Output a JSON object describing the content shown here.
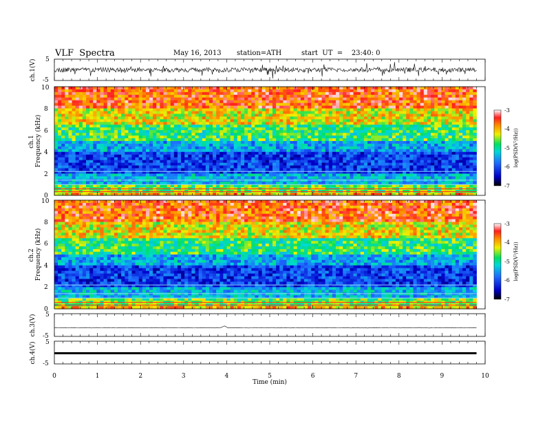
{
  "header": {
    "title": "VLF  Spectra",
    "date": "May 16, 2013",
    "station": "station=ATH",
    "start": "start  UT  =    23:40: 0"
  },
  "chart_data": [
    {
      "type": "line",
      "ylabel": "ch.1(V)",
      "ylim": [
        -5,
        5
      ],
      "yticks": [
        "5",
        "-5"
      ],
      "trace": "broadband noisy signal around 0 V"
    },
    {
      "type": "heatmap",
      "ylabel_top": "ch.1",
      "ylabel": "Frequency  (kHz)",
      "ylim": [
        0,
        10
      ],
      "yticks": [
        "0",
        "2",
        "4",
        "6",
        "8",
        "10"
      ],
      "colorbar": {
        "label": "log(PSD(V²/Hz))",
        "range": [
          -7,
          -3
        ],
        "ticks": [
          "-3",
          "-4",
          "-5",
          "-6",
          "-7"
        ]
      },
      "bands": [
        {
          "from": 0,
          "to": 0.3,
          "log_psd": -4
        },
        {
          "from": 0.3,
          "to": 1.0,
          "log_psd": -4.6
        },
        {
          "from": 1.0,
          "to": 2.0,
          "log_psd": -5.4
        },
        {
          "from": 2.0,
          "to": 4.0,
          "log_psd": -6.1
        },
        {
          "from": 4.0,
          "to": 5.0,
          "log_psd": -5.5
        },
        {
          "from": 5.0,
          "to": 6.5,
          "log_psd": -4.8
        },
        {
          "from": 6.5,
          "to": 8.0,
          "log_psd": -4.2
        },
        {
          "from": 8.0,
          "to": 10.0,
          "log_psd": -3.6
        }
      ]
    },
    {
      "type": "heatmap",
      "ylabel_top": "ch.2",
      "ylabel": "Frequency  (kHz)",
      "ylim": [
        0,
        10
      ],
      "yticks": [
        "0",
        "2",
        "4",
        "6",
        "8",
        "10"
      ],
      "colorbar": {
        "label": "log(PSD(V²/Hz))",
        "range": [
          -7,
          -3
        ],
        "ticks": [
          "-3",
          "-4",
          "-5",
          "-6",
          "-7"
        ]
      },
      "bands": [
        {
          "from": 0,
          "to": 0.3,
          "log_psd": -4
        },
        {
          "from": 0.3,
          "to": 1.0,
          "log_psd": -4.6
        },
        {
          "from": 1.0,
          "to": 2.0,
          "log_psd": -5.4
        },
        {
          "from": 2.0,
          "to": 4.0,
          "log_psd": -6.1
        },
        {
          "from": 4.0,
          "to": 5.0,
          "log_psd": -5.5
        },
        {
          "from": 5.0,
          "to": 6.5,
          "log_psd": -4.8
        },
        {
          "from": 6.5,
          "to": 8.0,
          "log_psd": -4.2
        },
        {
          "from": 8.0,
          "to": 10.0,
          "log_psd": -3.6
        }
      ]
    },
    {
      "type": "line",
      "ylabel": "ch.3(V)",
      "ylim": [
        -5,
        5
      ],
      "yticks": [
        "5",
        "-5"
      ],
      "trace": "flat line near -1 V with small bump at 4 min"
    },
    {
      "type": "line",
      "ylabel": "ch.4(V)",
      "ylim": [
        -5,
        5
      ],
      "yticks": [
        "5",
        "-5"
      ],
      "trace": "thick flat line near 0 V"
    }
  ],
  "xaxis": {
    "label": "Time  (min)",
    "ticks": [
      "0",
      "1",
      "2",
      "3",
      "4",
      "5",
      "6",
      "7",
      "8",
      "9",
      "10"
    ],
    "xlim": [
      0,
      10
    ],
    "data_end": 9.8
  }
}
